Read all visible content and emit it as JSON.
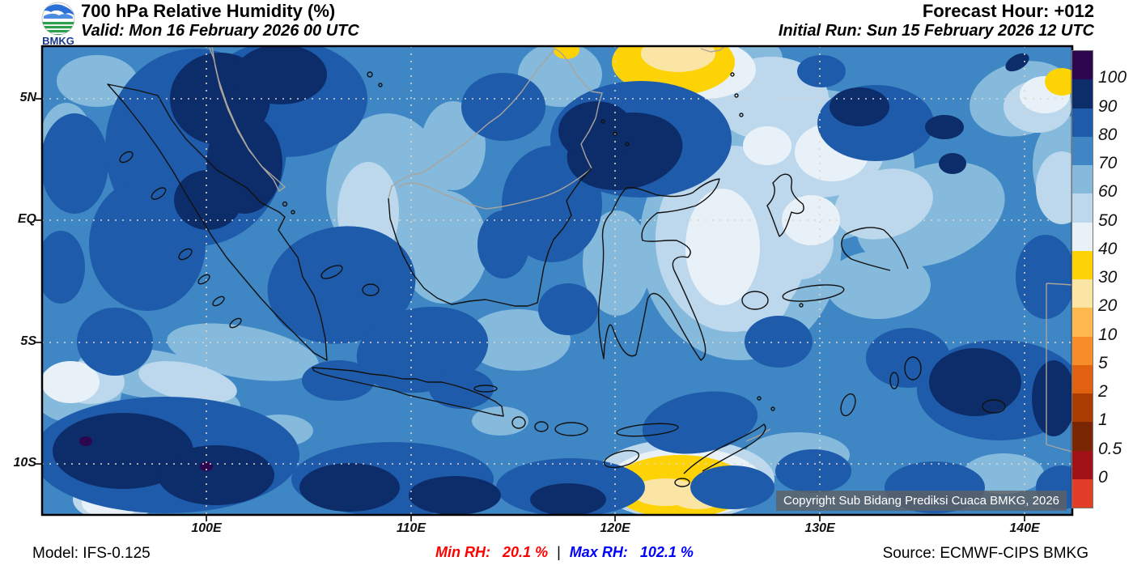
{
  "header": {
    "logo_text": "BMKG",
    "title": "700 hPa Relative Humidity (%)",
    "valid": "Valid: Mon 16 February 2026 00 UTC",
    "forecast_hour": "Forecast Hour: +012",
    "initial_run": "Initial Run: Sun 15 February 2026 12 UTC"
  },
  "map": {
    "copyright": "Copyright Sub Bidang Prediksi Cuaca BMKG, 2026",
    "lat_labels": [
      "5N",
      "EQ",
      "5S",
      "10S"
    ],
    "lon_labels": [
      "100E",
      "110E",
      "120E",
      "130E",
      "140E"
    ],
    "palette": {
      "c100": "#2d0650",
      "c90": "#0d2d6a",
      "c80": "#1e5baa",
      "c70": "#3e86c4",
      "c60": "#85badd",
      "c50": "#bdd8ec",
      "c40": "#e9f1f8",
      "c30": "#fdd306",
      "c20": "#fbe5a5",
      "c10": "#fdb94d",
      "c5": "#f78c2b",
      "c2": "#e0610f",
      "c1": "#ab3d03",
      "c05": "#7a2605",
      "c0": "#a11218",
      "cneg": "#e23d28"
    },
    "coast_black": "#111111",
    "coast_gray": "#a9a49c",
    "grid_color": "#ddd6cb"
  },
  "colorbar": {
    "labels": [
      "100",
      "90",
      "80",
      "70",
      "60",
      "50",
      "40",
      "30",
      "20",
      "10",
      "5",
      "2",
      "1",
      "0.5",
      "0"
    ],
    "band_order": [
      "c100",
      "c90",
      "c80",
      "c70",
      "c60",
      "c50",
      "c40",
      "c30",
      "c20",
      "c10",
      "c5",
      "c2",
      "c1",
      "c05",
      "c0",
      "cneg"
    ]
  },
  "footer": {
    "model": "Model: IFS-0.125",
    "min_label": "Min RH:",
    "min_value": "20.1 %",
    "separator": "|",
    "max_label": "Max RH:",
    "max_value": "102.1 %",
    "source": "Source: ECMWF-CIPS BMKG",
    "min_color": "#ff0000",
    "max_color": "#0000ff"
  }
}
